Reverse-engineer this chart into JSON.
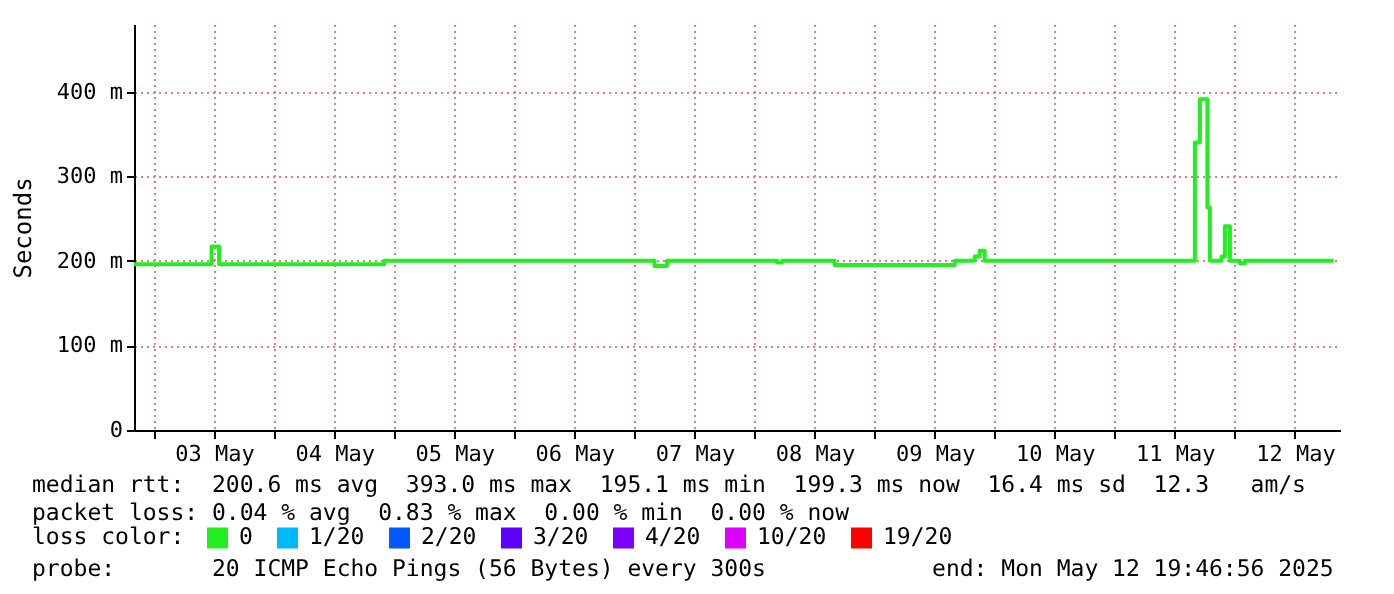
{
  "chart_data": {
    "type": "step",
    "ylabel": "Seconds",
    "legend_title": "loss color:",
    "legend": "bottom",
    "grid": true,
    "marker": "none",
    "annotations": [
      "median rtt:  200.6 ms avg  393.0 ms max  195.1 ms min  199.3 ms now  16.4 ms sd  12.3   am/s",
      "packet loss: 0.04 % avg  0.83 % max  0.00 % min  0.00 % now",
      "probe:       20 ICMP Echo Pings (56 Bytes) every 300s            end: Mon May 12 19:46:56 2025"
    ],
    "x": [
      "2025-05-02T20:00",
      "2025-05-03T11:00",
      "2025-05-03T11:30",
      "2025-05-03T12:30",
      "2025-05-03T13:00",
      "2025-05-04T22:00",
      "2025-05-07T04:00",
      "2025-05-07T06:30",
      "2025-05-08T04:30",
      "2025-05-08T05:30",
      "2025-05-08T16:00",
      "2025-05-09T16:00",
      "2025-05-09T20:00",
      "2025-05-09T21:00",
      "2025-05-09T22:00",
      "2025-05-11T16:00",
      "2025-05-11T17:00",
      "2025-05-11T18:30",
      "2025-05-11T19:00",
      "2025-05-11T21:20",
      "2025-05-11T22:00",
      "2025-05-11T23:00",
      "2025-05-12T01:00",
      "2025-05-12T02:00",
      "2025-05-12T19:45"
    ],
    "series": [
      {
        "name": "0",
        "color": "#22ee22",
        "values": [
          196,
          196,
          217,
          217,
          196,
          200,
          194,
          200,
          198,
          200,
          195,
          200,
          205,
          212,
          200,
          340,
          391,
          263,
          200,
          205,
          241,
          200,
          197,
          200,
          200
        ]
      },
      {
        "name": "1/20",
        "color": "#00b8ff",
        "values": [
          null,
          null,
          null,
          null,
          null,
          null,
          null,
          null,
          null,
          null,
          null,
          null,
          null,
          null,
          null,
          null,
          null,
          null,
          null,
          null,
          null,
          null,
          null,
          null,
          null
        ]
      },
      {
        "name": "2/20",
        "color": "#0059ff",
        "values": [
          null,
          null,
          null,
          null,
          null,
          null,
          null,
          null,
          null,
          null,
          null,
          null,
          null,
          null,
          null,
          null,
          null,
          null,
          null,
          null,
          null,
          null,
          null,
          null,
          null
        ]
      },
      {
        "name": "3/20",
        "color": "#5e00ff",
        "values": [
          null,
          null,
          null,
          null,
          null,
          null,
          null,
          null,
          null,
          null,
          null,
          null,
          null,
          null,
          null,
          null,
          null,
          null,
          null,
          null,
          null,
          null,
          null,
          null,
          null
        ]
      },
      {
        "name": "4/20",
        "color": "#7e00ff",
        "values": [
          null,
          null,
          null,
          null,
          null,
          null,
          null,
          null,
          null,
          null,
          null,
          null,
          null,
          null,
          null,
          null,
          null,
          null,
          null,
          null,
          null,
          null,
          null,
          null,
          null
        ]
      },
      {
        "name": "10/20",
        "color": "#dd00ff",
        "values": [
          null,
          null,
          null,
          null,
          null,
          null,
          null,
          null,
          null,
          null,
          null,
          null,
          null,
          null,
          null,
          null,
          null,
          null,
          null,
          null,
          null,
          null,
          null,
          null,
          null
        ]
      },
      {
        "name": "19/20",
        "color": "#ff0000",
        "values": [
          null,
          null,
          null,
          null,
          null,
          null,
          null,
          null,
          null,
          null,
          null,
          null,
          null,
          null,
          null,
          null,
          null,
          null,
          null,
          null,
          null,
          null,
          null,
          null,
          null
        ]
      }
    ],
    "xlim": [
      "2025-05-02T20:00",
      "2025-05-12T21:00"
    ],
    "xticks": [
      {
        "value": "2025-05-03T00:00",
        "label": null
      },
      {
        "value": "2025-05-03T12:00",
        "label": "03 May"
      },
      {
        "value": "2025-05-04T00:00",
        "label": null
      },
      {
        "value": "2025-05-04T12:00",
        "label": "04 May"
      },
      {
        "value": "2025-05-05T00:00",
        "label": null
      },
      {
        "value": "2025-05-05T12:00",
        "label": "05 May"
      },
      {
        "value": "2025-05-06T00:00",
        "label": null
      },
      {
        "value": "2025-05-06T12:00",
        "label": "06 May"
      },
      {
        "value": "2025-05-07T00:00",
        "label": null
      },
      {
        "value": "2025-05-07T12:00",
        "label": "07 May"
      },
      {
        "value": "2025-05-08T00:00",
        "label": null
      },
      {
        "value": "2025-05-08T12:00",
        "label": "08 May"
      },
      {
        "value": "2025-05-09T00:00",
        "label": null
      },
      {
        "value": "2025-05-09T12:00",
        "label": "09 May"
      },
      {
        "value": "2025-05-10T00:00",
        "label": null
      },
      {
        "value": "2025-05-10T12:00",
        "label": "10 May"
      },
      {
        "value": "2025-05-11T00:00",
        "label": null
      },
      {
        "value": "2025-05-11T12:00",
        "label": "11 May"
      },
      {
        "value": "2025-05-12T00:00",
        "label": null
      },
      {
        "value": "2025-05-12T12:00",
        "label": "12 May"
      }
    ],
    "ylim": [
      0,
      480
    ],
    "yticks": [
      0,
      {
        "value": 100,
        "label": "100 m"
      },
      {
        "value": 200,
        "label": "200 m"
      },
      {
        "value": 300,
        "label": "300 m"
      },
      {
        "value": 400,
        "label": "400 m"
      }
    ]
  }
}
